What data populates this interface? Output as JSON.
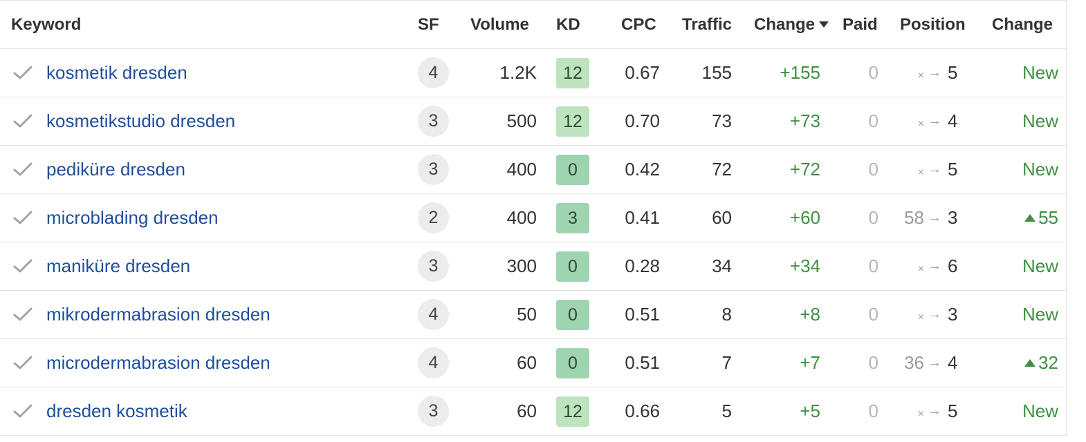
{
  "colors": {
    "link": "#1e4f9c",
    "positive": "#3d9140",
    "kd_light": "#bfe2bf",
    "kd_mid": "#9fd4b0",
    "sf_badge": "#ececec",
    "border": "#e4e4e4"
  },
  "headers": {
    "keyword": "Keyword",
    "sf": "SF",
    "volume": "Volume",
    "kd": "KD",
    "cpc": "CPC",
    "traffic": "Traffic",
    "change": "Change",
    "paid": "Paid",
    "position": "Position",
    "position_change": "Change"
  },
  "icons": {
    "row_marker": "check-icon",
    "sort": "sort-desc-icon",
    "position_arrow": "arrow-right-icon",
    "increase": "triangle-up-icon"
  },
  "rows": [
    {
      "keyword": "kosmetik dresden",
      "sf": "4",
      "volume": "1.2K",
      "kd": "12",
      "kd_color": "#bfe2bf",
      "cpc": "0.67",
      "traffic": "155",
      "change": "+155",
      "paid": "0",
      "pos_from": "×",
      "pos_arrow": "→",
      "pos_to": "5",
      "pos_change": "New",
      "pos_change_up": false
    },
    {
      "keyword": "kosmetikstudio dresden",
      "sf": "3",
      "volume": "500",
      "kd": "12",
      "kd_color": "#bfe2bf",
      "cpc": "0.70",
      "traffic": "73",
      "change": "+73",
      "paid": "0",
      "pos_from": "×",
      "pos_arrow": "→",
      "pos_to": "4",
      "pos_change": "New",
      "pos_change_up": false
    },
    {
      "keyword": "pediküre dresden",
      "sf": "3",
      "volume": "400",
      "kd": "0",
      "kd_color": "#9fd4b0",
      "cpc": "0.42",
      "traffic": "72",
      "change": "+72",
      "paid": "0",
      "pos_from": "×",
      "pos_arrow": "→",
      "pos_to": "5",
      "pos_change": "New",
      "pos_change_up": false
    },
    {
      "keyword": "microblading dresden",
      "sf": "2",
      "volume": "400",
      "kd": "3",
      "kd_color": "#9fd4b0",
      "cpc": "0.41",
      "traffic": "60",
      "change": "+60",
      "paid": "0",
      "pos_from": "58",
      "pos_arrow": "→",
      "pos_to": "3",
      "pos_change": "55",
      "pos_change_up": true
    },
    {
      "keyword": "maniküre dresden",
      "sf": "3",
      "volume": "300",
      "kd": "0",
      "kd_color": "#9fd4b0",
      "cpc": "0.28",
      "traffic": "34",
      "change": "+34",
      "paid": "0",
      "pos_from": "×",
      "pos_arrow": "→",
      "pos_to": "6",
      "pos_change": "New",
      "pos_change_up": false
    },
    {
      "keyword": "mikrodermabrasion dresden",
      "sf": "4",
      "volume": "50",
      "kd": "0",
      "kd_color": "#9fd4b0",
      "cpc": "0.51",
      "traffic": "8",
      "change": "+8",
      "paid": "0",
      "pos_from": "×",
      "pos_arrow": "→",
      "pos_to": "3",
      "pos_change": "New",
      "pos_change_up": false
    },
    {
      "keyword": "microdermabrasion dresden",
      "sf": "4",
      "volume": "60",
      "kd": "0",
      "kd_color": "#9fd4b0",
      "cpc": "0.51",
      "traffic": "7",
      "change": "+7",
      "paid": "0",
      "pos_from": "36",
      "pos_arrow": "→",
      "pos_to": "4",
      "pos_change": "32",
      "pos_change_up": true
    },
    {
      "keyword": "dresden kosmetik",
      "sf": "3",
      "volume": "60",
      "kd": "12",
      "kd_color": "#bfe2bf",
      "cpc": "0.66",
      "traffic": "5",
      "change": "+5",
      "paid": "0",
      "pos_from": "×",
      "pos_arrow": "→",
      "pos_to": "5",
      "pos_change": "New",
      "pos_change_up": false
    }
  ]
}
